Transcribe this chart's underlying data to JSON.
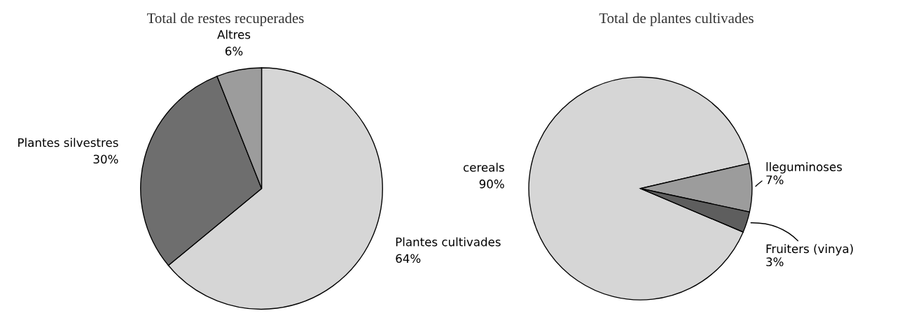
{
  "chart_data": [
    {
      "type": "pie",
      "title": "Total de restes recuperades",
      "categories": [
        "Plantes cultivades",
        "Plantes silvestres",
        "Altres"
      ],
      "values": [
        64,
        30,
        6
      ],
      "value_labels": [
        "64%",
        "30%",
        "6%"
      ],
      "colors": [
        "#d6d6d6",
        "#6e6e6e",
        "#9c9c9c"
      ],
      "legend": false
    },
    {
      "type": "pie",
      "title": "Total de plantes cultivades",
      "categories": [
        "cereals",
        "lleguminoses",
        "Fruiters (vinya)"
      ],
      "values": [
        90,
        7,
        3
      ],
      "value_labels": [
        "90%",
        "7%",
        "3%"
      ],
      "colors": [
        "#d6d6d6",
        "#9c9c9c",
        "#5e5e5e"
      ],
      "legend": false
    }
  ]
}
